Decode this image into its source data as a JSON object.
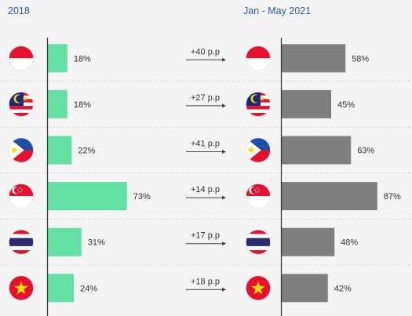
{
  "chart_data": {
    "type": "bar",
    "title": "",
    "panels": [
      {
        "header": "2018",
        "color": "#64e0a4",
        "values": [
          18,
          18,
          22,
          73,
          31,
          24
        ]
      },
      {
        "header": "Jan - May 2021",
        "color": "#7f7f7f",
        "values": [
          58,
          45,
          63,
          87,
          48,
          42
        ]
      }
    ],
    "categories": [
      "Indonesia flag",
      "Malaysia flag",
      "Philippines flag",
      "Singapore flag",
      "Thailand flag",
      "Vietnam flag"
    ],
    "value_labels_left": [
      "18%",
      "18%",
      "22%",
      "73%",
      "31%",
      "24%"
    ],
    "value_labels_right": [
      "58%",
      "45%",
      "63%",
      "87%",
      "48%",
      "42%"
    ],
    "changes": [
      "+40 p.p",
      "+27 p.p",
      "+41 p.p",
      "+14 p.p",
      "+17 p.p",
      "+18 p.p"
    ],
    "xlim": [
      0,
      100
    ],
    "grid": false
  },
  "colors": {
    "header": "#2e5aa8",
    "separator": "#cfcfcf",
    "axis": "#3a3a3a"
  },
  "flags": [
    "indonesia",
    "malaysia",
    "philippines",
    "singapore",
    "thailand",
    "vietnam"
  ]
}
